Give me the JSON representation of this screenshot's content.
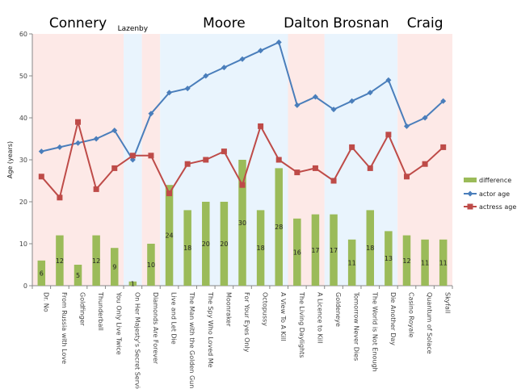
{
  "chart_data": {
    "type": "bar+line",
    "ylabel": "Age (years)",
    "ylim": [
      0,
      60
    ],
    "yticks": [
      0,
      10,
      20,
      30,
      40,
      50,
      60
    ],
    "grid": false,
    "legend_position": "right",
    "categories": [
      "Dr. No",
      "From Russia with Love",
      "Goldfinger",
      "Thunderball",
      "You Only Live Twice",
      "On Her Majesty's Secret Service",
      "Diamonds Are Forever",
      "Live and Let Die",
      "The Man with the Golden Gun",
      "The Spy Who Loved Me",
      "Moonraker",
      "For Your Eyes Only",
      "Octopussy",
      "A View To A Kill",
      "The Living Daylights",
      "A Licence to Kill",
      "Goldeneye",
      "Tomorrow Never Dies",
      "The World is Not Enough",
      "Die Another Day",
      "Casino Royale",
      "Quantum of Solace",
      "Skyfall"
    ],
    "series": [
      {
        "name": "difference",
        "kind": "bar",
        "color": "#9bbb59",
        "values": [
          6,
          12,
          5,
          12,
          9,
          1,
          10,
          24,
          18,
          20,
          20,
          30,
          18,
          28,
          16,
          17,
          17,
          11,
          18,
          13,
          12,
          11,
          11
        ]
      },
      {
        "name": "actor age",
        "kind": "line",
        "color": "#4a7ebb",
        "marker": "diamond",
        "values": [
          32,
          33,
          34,
          35,
          37,
          30,
          41,
          46,
          47,
          50,
          52,
          54,
          56,
          58,
          43,
          45,
          42,
          44,
          46,
          49,
          38,
          40,
          44
        ]
      },
      {
        "name": "actress age",
        "kind": "line",
        "color": "#be4b48",
        "marker": "square",
        "values": [
          26,
          21,
          39,
          23,
          28,
          31,
          31,
          22,
          29,
          30,
          32,
          24,
          38,
          30,
          27,
          28,
          25,
          33,
          28,
          36,
          26,
          29,
          33
        ]
      }
    ],
    "eras": [
      {
        "name": "Connery",
        "start": 0,
        "end": 4,
        "color": "#fde9e7",
        "size": "large"
      },
      {
        "name": "Lazenby",
        "start": 5,
        "end": 5,
        "color": "#e9f4fd",
        "size": "small"
      },
      {
        "name": "",
        "start": 6,
        "end": 6,
        "color": "#fde9e7",
        "size": "large"
      },
      {
        "name": "Moore",
        "start": 7,
        "end": 13,
        "color": "#e9f4fd",
        "size": "large"
      },
      {
        "name": "Dalton",
        "start": 14,
        "end": 15,
        "color": "#fde9e7",
        "size": "large"
      },
      {
        "name": "Brosnan",
        "start": 16,
        "end": 19,
        "color": "#e9f4fd",
        "size": "large"
      },
      {
        "name": "Craig",
        "start": 20,
        "end": 22,
        "color": "#fde9e7",
        "size": "large"
      }
    ]
  }
}
